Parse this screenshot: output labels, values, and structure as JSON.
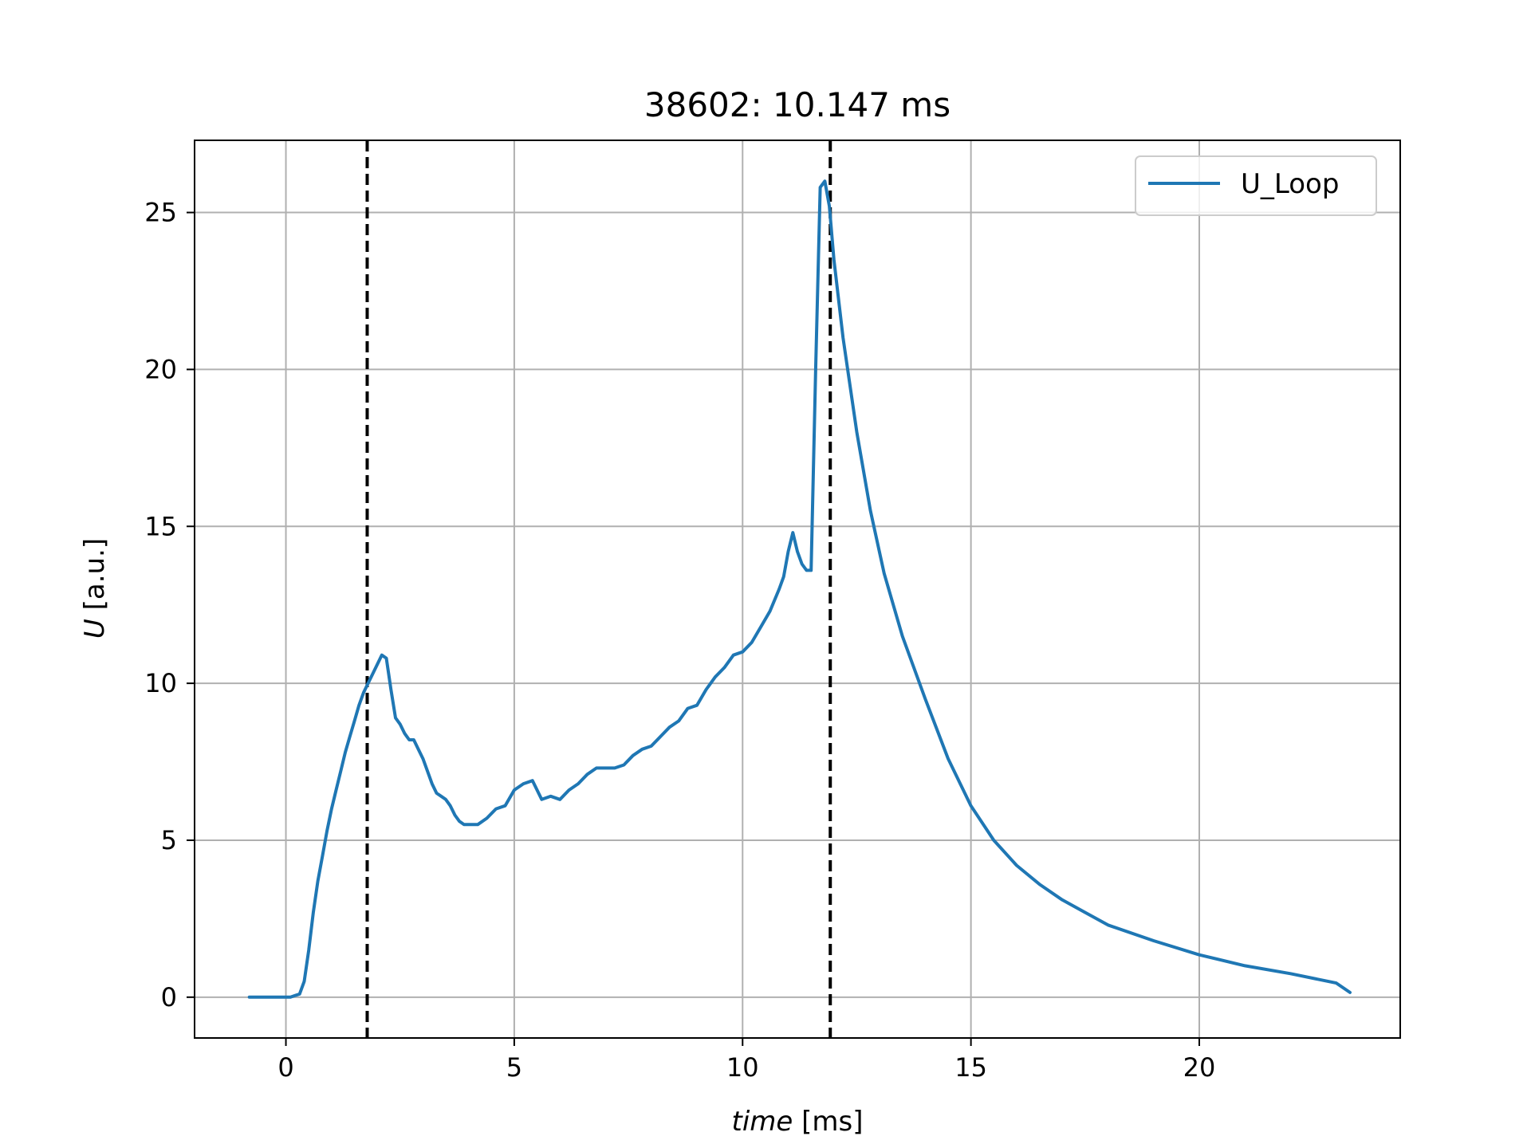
{
  "chart_data": {
    "type": "line",
    "title": "38602: 10.147 ms",
    "xlabel": {
      "italic": "time",
      "unit": " [ms]"
    },
    "ylabel": {
      "italic": "U",
      "unit": " [a.u.]"
    },
    "xlim": [
      -2.0,
      24.4
    ],
    "ylim": [
      -1.3,
      27.3
    ],
    "xticks": [
      0,
      5,
      10,
      15,
      20
    ],
    "yticks": [
      0,
      5,
      10,
      15,
      20,
      25
    ],
    "xtick_labels": [
      "0",
      "5",
      "10",
      "15",
      "20"
    ],
    "ytick_labels": [
      "0",
      "5",
      "10",
      "15",
      "20",
      "25"
    ],
    "grid": true,
    "legend": {
      "position": "top-right",
      "entries": [
        "U_Loop"
      ]
    },
    "colors": {
      "series": "#1f77b4",
      "vline": "#000000",
      "grid": "#b0b0b0"
    },
    "vlines": [
      1.78,
      11.92
    ],
    "series": [
      {
        "name": "U_Loop",
        "x": [
          -0.8,
          -0.4,
          0.0,
          0.1,
          0.2,
          0.3,
          0.4,
          0.5,
          0.6,
          0.7,
          0.8,
          0.9,
          1.0,
          1.1,
          1.2,
          1.3,
          1.4,
          1.5,
          1.6,
          1.7,
          1.8,
          1.9,
          2.0,
          2.1,
          2.2,
          2.3,
          2.4,
          2.5,
          2.6,
          2.7,
          2.8,
          2.9,
          3.0,
          3.1,
          3.2,
          3.3,
          3.4,
          3.5,
          3.6,
          3.7,
          3.8,
          3.9,
          4.0,
          4.2,
          4.4,
          4.6,
          4.8,
          5.0,
          5.2,
          5.4,
          5.6,
          5.8,
          6.0,
          6.2,
          6.4,
          6.6,
          6.8,
          7.0,
          7.2,
          7.4,
          7.6,
          7.8,
          8.0,
          8.2,
          8.4,
          8.6,
          8.8,
          9.0,
          9.2,
          9.4,
          9.6,
          9.8,
          10.0,
          10.2,
          10.4,
          10.6,
          10.8,
          10.9,
          11.0,
          11.1,
          11.2,
          11.3,
          11.4,
          11.5,
          11.6,
          11.7,
          11.8,
          11.9,
          12.0,
          12.2,
          12.5,
          12.8,
          13.1,
          13.5,
          14.0,
          14.5,
          15.0,
          15.5,
          16.0,
          16.5,
          17.0,
          18.0,
          19.0,
          20.0,
          21.0,
          22.0,
          23.0,
          23.3
        ],
        "values": [
          0.0,
          0.0,
          0.0,
          0.0,
          0.05,
          0.1,
          0.5,
          1.5,
          2.7,
          3.7,
          4.5,
          5.3,
          6.0,
          6.6,
          7.2,
          7.8,
          8.3,
          8.8,
          9.3,
          9.7,
          10.0,
          10.3,
          10.6,
          10.9,
          10.8,
          9.8,
          8.9,
          8.7,
          8.4,
          8.2,
          8.2,
          7.9,
          7.6,
          7.2,
          6.8,
          6.5,
          6.4,
          6.3,
          6.1,
          5.8,
          5.6,
          5.5,
          5.5,
          5.5,
          5.7,
          6.0,
          6.1,
          6.6,
          6.8,
          6.9,
          6.3,
          6.4,
          6.3,
          6.6,
          6.8,
          7.1,
          7.3,
          7.3,
          7.3,
          7.4,
          7.7,
          7.9,
          8.0,
          8.3,
          8.6,
          8.8,
          9.2,
          9.3,
          9.8,
          10.2,
          10.5,
          10.9,
          11.0,
          11.3,
          11.8,
          12.3,
          13.0,
          13.4,
          14.2,
          14.8,
          14.2,
          13.8,
          13.6,
          13.6,
          20.0,
          25.8,
          26.0,
          25.2,
          23.5,
          21.0,
          18.0,
          15.5,
          13.5,
          11.5,
          9.5,
          7.6,
          6.1,
          5.0,
          4.2,
          3.6,
          3.1,
          2.3,
          1.8,
          1.35,
          1.0,
          0.75,
          0.45,
          0.15
        ]
      }
    ]
  }
}
